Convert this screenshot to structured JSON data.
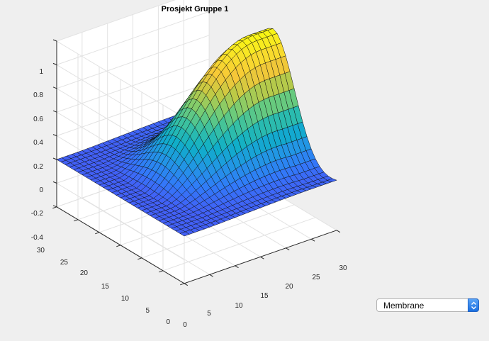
{
  "plot": {
    "title": "Prosjekt Gruppe 1",
    "type": "surface",
    "colormap": "parula",
    "grid": true,
    "z_ticks": [
      "1",
      "0.8",
      "0.6",
      "0.4",
      "0.2",
      "0",
      "-0.2",
      "-0.4"
    ],
    "x_ticks": [
      "0",
      "5",
      "10",
      "15",
      "20",
      "25",
      "30"
    ],
    "y_ticks": [
      "0",
      "5",
      "10",
      "15",
      "20",
      "25",
      "30"
    ],
    "x_range": [
      0,
      30
    ],
    "y_range": [
      0,
      30
    ],
    "z_range": [
      -0.4,
      1
    ]
  },
  "dropdown": {
    "selected": "Membrane"
  }
}
